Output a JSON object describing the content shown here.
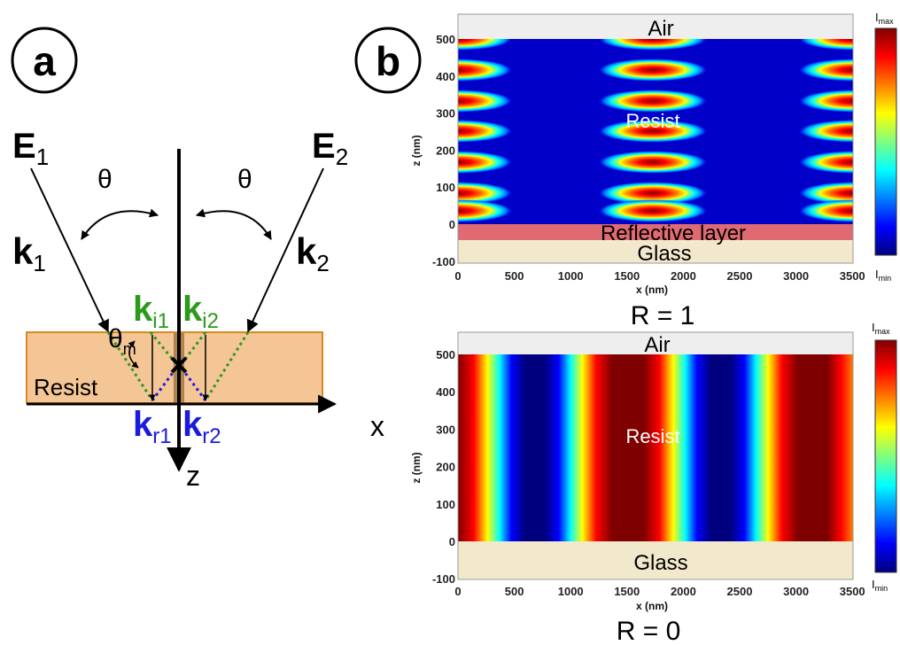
{
  "panel_a": {
    "label": "a",
    "field_1": "E",
    "field_1_sub": "1",
    "field_2": "E",
    "field_2_sub": "2",
    "theta_left": "θ",
    "theta_right": "θ",
    "wave_1": "k",
    "wave_1_sub": "1",
    "wave_2": "k",
    "wave_2_sub": "2",
    "refr_1": "k",
    "refr_1_sub": "i1",
    "refr_2": "k",
    "refr_2_sub": "i2",
    "theta_m": "θ",
    "theta_m_sub": "m",
    "resist": "Resist",
    "refl_1": "k",
    "refl_1_sub": "r1",
    "refl_2": "k",
    "refl_2_sub": "r2",
    "x_axis": "x",
    "z_axis": "z",
    "colors": {
      "resist_fill": "#f4c595",
      "resist_border": "#d98a1e",
      "green": "#2a9a1a",
      "blue": "#1a1adf"
    }
  },
  "panel_b": {
    "label": "b",
    "plots": [
      {
        "caption": "R = 1",
        "air": "Air",
        "resist": "Resist",
        "reflective": "Reflective layer",
        "glass": "Glass",
        "xlabel": "x (nm)",
        "ylabel": "z (nm)",
        "xticks": [
          "0",
          "500",
          "1000",
          "1500",
          "2000",
          "2500",
          "3000",
          "3500"
        ],
        "yticks": [
          "-100",
          "0",
          "100",
          "200",
          "300",
          "400",
          "500"
        ],
        "imax": "I",
        "imax_sub": "max",
        "imin": "I",
        "imin_sub": "min"
      },
      {
        "caption": "R = 0",
        "air": "Air",
        "resist": "Resist",
        "glass": "Glass",
        "xlabel": "x (nm)",
        "ylabel": "z (nm)",
        "xticks": [
          "0",
          "500",
          "1000",
          "1500",
          "2000",
          "2500",
          "3000",
          "3500"
        ],
        "yticks": [
          "-100",
          "0",
          "100",
          "200",
          "300",
          "400",
          "500"
        ],
        "imax": "I",
        "imax_sub": "max",
        "imin": "I",
        "imin_sub": "min"
      }
    ],
    "colors": {
      "air": "#eeeeee",
      "reflective": "#e06a72",
      "glass": "#f2e8cc",
      "jet": [
        "#00007f",
        "#0000ff",
        "#007fff",
        "#00ffff",
        "#7fff7f",
        "#ffff00",
        "#ff7f00",
        "#ff0000",
        "#7f0000"
      ]
    }
  }
}
